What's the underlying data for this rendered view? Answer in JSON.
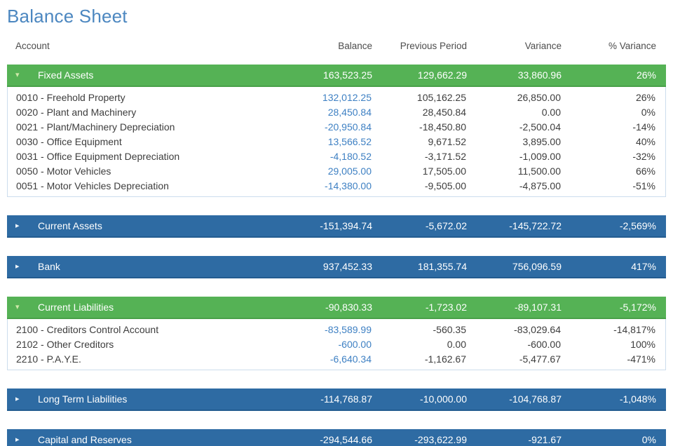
{
  "page": {
    "title": "Balance Sheet"
  },
  "colors": {
    "title_blue": "#4c87c0",
    "band_green": "#55b255",
    "band_blue": "#2e6ba3",
    "link_blue": "#3e80c3"
  },
  "icons": {
    "expanded": "▾",
    "collapsed": "▸"
  },
  "table": {
    "columns": [
      "Account",
      "Balance",
      "Previous Period",
      "Variance",
      "% Variance"
    ],
    "sections": [
      {
        "name": "Fixed Assets",
        "style": "green",
        "expanded": true,
        "totals": [
          "163,523.25",
          "129,662.29",
          "33,860.96",
          "26%"
        ],
        "rows": [
          {
            "account": "0010 - Freehold Property",
            "values": [
              "132,012.25",
              "105,162.25",
              "26,850.00",
              "26%"
            ]
          },
          {
            "account": "0020 - Plant and Machinery",
            "values": [
              "28,450.84",
              "28,450.84",
              "0.00",
              "0%"
            ]
          },
          {
            "account": "0021 - Plant/Machinery Depreciation",
            "values": [
              "-20,950.84",
              "-18,450.80",
              "-2,500.04",
              "-14%"
            ]
          },
          {
            "account": "0030 - Office Equipment",
            "values": [
              "13,566.52",
              "9,671.52",
              "3,895.00",
              "40%"
            ]
          },
          {
            "account": "0031 - Office Equipment Depreciation",
            "values": [
              "-4,180.52",
              "-3,171.52",
              "-1,009.00",
              "-32%"
            ]
          },
          {
            "account": "0050 - Motor Vehicles",
            "values": [
              "29,005.00",
              "17,505.00",
              "11,500.00",
              "66%"
            ]
          },
          {
            "account": "0051 - Motor Vehicles Depreciation",
            "values": [
              "-14,380.00",
              "-9,505.00",
              "-4,875.00",
              "-51%"
            ]
          }
        ]
      },
      {
        "name": "Current Assets",
        "style": "blue",
        "expanded": false,
        "totals": [
          "-151,394.74",
          "-5,672.02",
          "-145,722.72",
          "-2,569%"
        ],
        "rows": []
      },
      {
        "name": "Bank",
        "style": "blue",
        "expanded": false,
        "totals": [
          "937,452.33",
          "181,355.74",
          "756,096.59",
          "417%"
        ],
        "rows": []
      },
      {
        "name": "Current Liabilities",
        "style": "green",
        "expanded": true,
        "totals": [
          "-90,830.33",
          "-1,723.02",
          "-89,107.31",
          "-5,172%"
        ],
        "rows": [
          {
            "account": "2100 - Creditors Control Account",
            "values": [
              "-83,589.99",
              "-560.35",
              "-83,029.64",
              "-14,817%"
            ]
          },
          {
            "account": "2102 - Other Creditors",
            "values": [
              "-600.00",
              "0.00",
              "-600.00",
              "100%"
            ]
          },
          {
            "account": "2210 - P.A.Y.E.",
            "values": [
              "-6,640.34",
              "-1,162.67",
              "-5,477.67",
              "-471%"
            ]
          }
        ]
      },
      {
        "name": "Long Term Liabilities",
        "style": "blue",
        "expanded": false,
        "totals": [
          "-114,768.87",
          "-10,000.00",
          "-104,768.87",
          "-1,048%"
        ],
        "rows": []
      },
      {
        "name": "Capital and Reserves",
        "style": "blue",
        "expanded": false,
        "totals": [
          "-294,544.66",
          "-293,622.99",
          "-921.67",
          "0%"
        ],
        "rows": []
      }
    ]
  }
}
